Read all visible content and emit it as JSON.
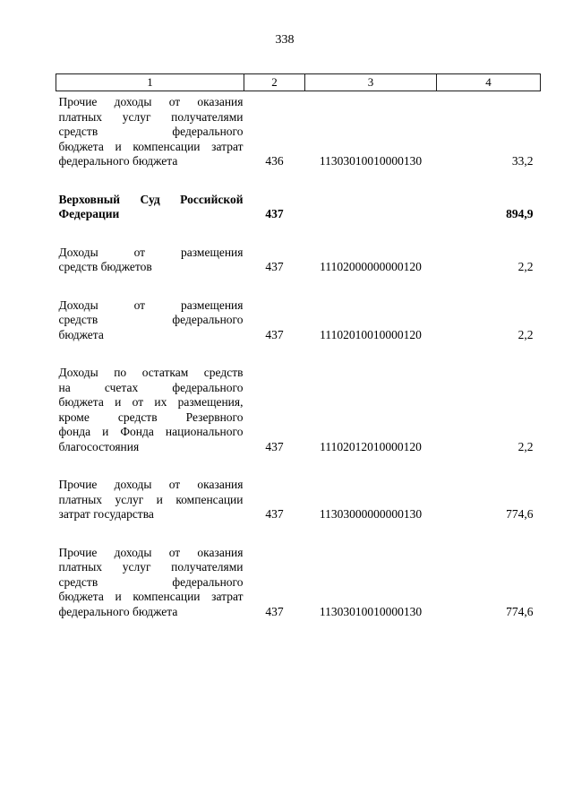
{
  "page": {
    "number": "338"
  },
  "table": {
    "header": [
      "1",
      "2",
      "3",
      "4"
    ],
    "rows": [
      {
        "name_lines": [
          "Прочие доходы от оказания",
          "платных услуг получателями",
          "средств федерального",
          "бюджета и компенсации затрат",
          "федерального бюджета"
        ],
        "chapter": "436",
        "code": "11303010010000130",
        "amount": "33,2",
        "bold": false
      },
      {
        "name_lines": [
          "Верховный Суд Российской",
          "Федерации"
        ],
        "chapter": "437",
        "code": "",
        "amount": "894,9",
        "bold": true
      },
      {
        "name_lines": [
          "Доходы от размещения",
          "средств бюджетов"
        ],
        "chapter": "437",
        "code": "11102000000000120",
        "amount": "2,2",
        "bold": false
      },
      {
        "name_lines": [
          "Доходы от размещения",
          "средств федерального",
          "бюджета"
        ],
        "chapter": "437",
        "code": "11102010010000120",
        "amount": "2,2",
        "bold": false
      },
      {
        "name_lines": [
          "Доходы по остаткам средств",
          "на счетах федерального",
          "бюджета и от их размещения,",
          "кроме средств Резервного",
          "фонда и Фонда национального",
          "благосостояния"
        ],
        "chapter": "437",
        "code": "11102012010000120",
        "amount": "2,2",
        "bold": false
      },
      {
        "name_lines": [
          "Прочие доходы от оказания",
          "платных услуг и компенсации",
          "затрат государства"
        ],
        "chapter": "437",
        "code": "11303000000000130",
        "amount": "774,6",
        "bold": false
      },
      {
        "name_lines": [
          "Прочие доходы от оказания",
          "платных услуг получателями",
          "средств федерального",
          "бюджета и компенсации затрат",
          "федерального бюджета"
        ],
        "chapter": "437",
        "code": "11303010010000130",
        "amount": "774,6",
        "bold": false
      }
    ]
  }
}
